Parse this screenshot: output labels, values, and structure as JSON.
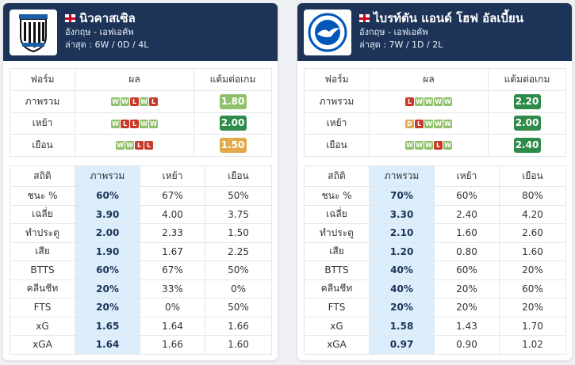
{
  "teams": [
    {
      "name": "นิวคาสเซิล",
      "country_league": "อังกฤษ - เอฟเอคัพ",
      "recent": "ล่าสุด : 6W / 0D / 4L",
      "logo_icon": "newcastle-crest",
      "form_headers": [
        "ฟอร์ม",
        "ผล",
        "แต้มต่อเกม"
      ],
      "form_rows": [
        {
          "label": "ภาพรวม",
          "results": [
            "W",
            "W",
            "L",
            "W",
            "L"
          ],
          "ppg": "1.80",
          "ppg_color": "#8fc16a"
        },
        {
          "label": "เหย้า",
          "results": [
            "W",
            "L",
            "L",
            "W",
            "W"
          ],
          "ppg": "2.00",
          "ppg_color": "#2e8b4a"
        },
        {
          "label": "เยือน",
          "results": [
            "W",
            "W",
            "L",
            "L"
          ],
          "ppg": "1.50",
          "ppg_color": "#e2a94b"
        }
      ],
      "stats_headers": [
        "สถิติ",
        "ภาพรวม",
        "เหย้า",
        "เยือน"
      ],
      "stats": [
        {
          "label": "ชนะ %",
          "overall": "60%",
          "home": "67%",
          "away": "50%"
        },
        {
          "label": "เฉลี่ย",
          "overall": "3.90",
          "home": "4.00",
          "away": "3.75"
        },
        {
          "label": "ทำประตู",
          "overall": "2.00",
          "home": "2.33",
          "away": "1.50"
        },
        {
          "label": "เสีย",
          "overall": "1.90",
          "home": "1.67",
          "away": "2.25"
        },
        {
          "label": "BTTS",
          "overall": "60%",
          "home": "67%",
          "away": "50%"
        },
        {
          "label": "คลีนชีท",
          "overall": "20%",
          "home": "33%",
          "away": "0%"
        },
        {
          "label": "FTS",
          "overall": "20%",
          "home": "0%",
          "away": "50%"
        },
        {
          "label": "xG",
          "overall": "1.65",
          "home": "1.64",
          "away": "1.66"
        },
        {
          "label": "xGA",
          "overall": "1.64",
          "home": "1.66",
          "away": "1.60"
        }
      ]
    },
    {
      "name": "ไบรท์ตัน แอนด์ โฮฟ อัลเบี้ยน",
      "country_league": "อังกฤษ - เอฟเอคัพ",
      "recent": "ล่าสุด : 7W / 1D / 2L",
      "logo_icon": "brighton-crest",
      "form_headers": [
        "ฟอร์ม",
        "ผล",
        "แต้มต่อเกม"
      ],
      "form_rows": [
        {
          "label": "ภาพรวม",
          "results": [
            "L",
            "W",
            "W",
            "W",
            "W"
          ],
          "ppg": "2.20",
          "ppg_color": "#2e8b4a"
        },
        {
          "label": "เหย้า",
          "results": [
            "D",
            "L",
            "W",
            "W",
            "W"
          ],
          "ppg": "2.00",
          "ppg_color": "#2e8b4a"
        },
        {
          "label": "เยือน",
          "results": [
            "W",
            "W",
            "W",
            "L",
            "W"
          ],
          "ppg": "2.40",
          "ppg_color": "#2e8b4a"
        }
      ],
      "stats_headers": [
        "สถิติ",
        "ภาพรวม",
        "เหย้า",
        "เยือน"
      ],
      "stats": [
        {
          "label": "ชนะ %",
          "overall": "70%",
          "home": "60%",
          "away": "80%"
        },
        {
          "label": "เฉลี่ย",
          "overall": "3.30",
          "home": "2.40",
          "away": "4.20"
        },
        {
          "label": "ทำประตู",
          "overall": "2.10",
          "home": "1.60",
          "away": "2.60"
        },
        {
          "label": "เสีย",
          "overall": "1.20",
          "home": "0.80",
          "away": "1.60"
        },
        {
          "label": "BTTS",
          "overall": "40%",
          "home": "60%",
          "away": "20%"
        },
        {
          "label": "คลีนชีท",
          "overall": "40%",
          "home": "20%",
          "away": "60%"
        },
        {
          "label": "FTS",
          "overall": "20%",
          "home": "20%",
          "away": "20%"
        },
        {
          "label": "xG",
          "overall": "1.58",
          "home": "1.43",
          "away": "1.70"
        },
        {
          "label": "xGA",
          "overall": "0.97",
          "home": "0.90",
          "away": "1.02"
        }
      ]
    }
  ]
}
